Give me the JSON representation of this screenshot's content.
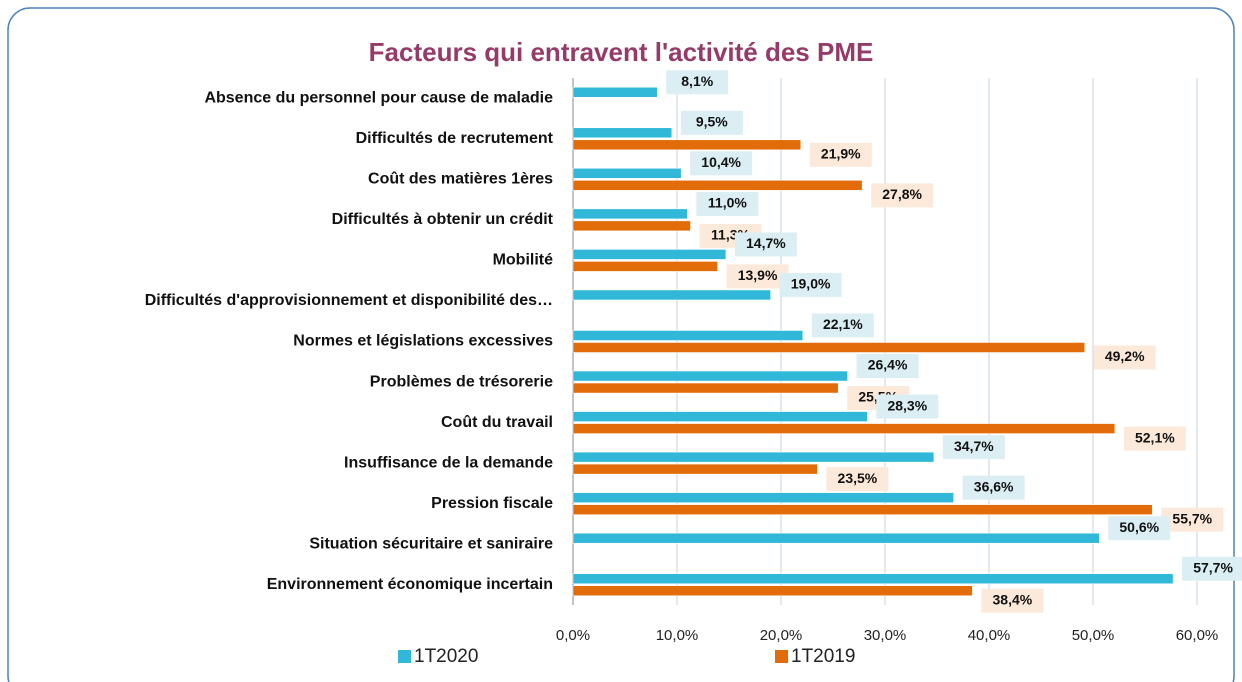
{
  "chart_data": {
    "type": "bar",
    "orientation": "horizontal",
    "title": "Facteurs qui entravent l'activité des PME",
    "categories": [
      "Absence du personnel pour cause de maladie",
      "Difficultés de recrutement",
      "Coût des matières 1ères",
      "Difficultés à obtenir un crédit",
      "Mobilité",
      "Difficultés d'approvisionnement et disponibilité des…",
      "Normes et législations excessives",
      "Problèmes de trésorerie",
      "Coût du travail",
      "Insuffisance de la demande",
      "Pression fiscale",
      "Situation sécuritaire et saniraire",
      "Environnement économique incertain"
    ],
    "series": [
      {
        "name": "1T2020",
        "color": "#31b8d8",
        "label_bg": "#daeef3",
        "values": [
          8.1,
          9.5,
          10.4,
          11.0,
          14.7,
          19.0,
          22.1,
          26.4,
          28.3,
          34.7,
          36.6,
          50.6,
          57.7
        ],
        "value_labels": [
          "8,1%",
          "9,5%",
          "10,4%",
          "11,0%",
          "14,7%",
          "19,0%",
          "22,1%",
          "26,4%",
          "28,3%",
          "34,7%",
          "36,6%",
          "50,6%",
          "57,7%"
        ]
      },
      {
        "name": "1T2019",
        "color": "#e36c0a",
        "label_bg": "#fde9d9",
        "values": [
          null,
          21.9,
          27.8,
          11.3,
          13.9,
          null,
          49.2,
          25.5,
          52.1,
          23.5,
          55.7,
          null,
          38.4
        ],
        "value_labels": [
          null,
          "21,9%",
          "27,8%",
          "11,3%",
          "13,9%",
          null,
          "49,2%",
          "25,5%",
          "52,1%",
          "23,5%",
          "55,7%",
          null,
          "38,4%"
        ]
      }
    ],
    "xlim": [
      0,
      60
    ],
    "xticks": [
      {
        "value": 0,
        "label": "0,0%"
      },
      {
        "value": 10,
        "label": "10,0%"
      },
      {
        "value": 20,
        "label": "20,0%"
      },
      {
        "value": 30,
        "label": "30,0%"
      },
      {
        "value": 40,
        "label": "40,0%"
      },
      {
        "value": 50,
        "label": "50,0%"
      },
      {
        "value": 60,
        "label": "60,0%"
      }
    ],
    "grid": true,
    "legend": "bottom"
  }
}
